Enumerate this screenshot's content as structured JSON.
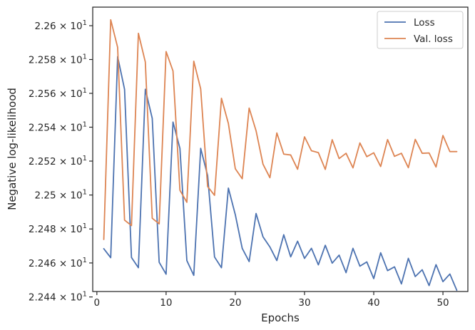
{
  "chart_data": {
    "type": "line",
    "xlabel": "Epochs",
    "ylabel": "Negative log-likelihood",
    "xlim": [
      -0.6,
      53.6
    ],
    "ylim": [
      22.4432,
      22.611
    ],
    "y_scale": "log",
    "grid": false,
    "legend_position": "top-right",
    "x_ticks": [
      0,
      10,
      20,
      30,
      40,
      50
    ],
    "y_ticks": [
      {
        "value": 22.44,
        "mantissa": "2.244",
        "base": "10",
        "exp": "1"
      },
      {
        "value": 22.46,
        "mantissa": "2.246",
        "base": "10",
        "exp": "1"
      },
      {
        "value": 22.48,
        "mantissa": "2.248",
        "base": "10",
        "exp": "1"
      },
      {
        "value": 22.5,
        "mantissa": "2.25",
        "base": "10",
        "exp": "1"
      },
      {
        "value": 22.52,
        "mantissa": "2.252",
        "base": "10",
        "exp": "1"
      },
      {
        "value": 22.54,
        "mantissa": "2.254",
        "base": "10",
        "exp": "1"
      },
      {
        "value": 22.56,
        "mantissa": "2.256",
        "base": "10",
        "exp": "1"
      },
      {
        "value": 22.58,
        "mantissa": "2.258",
        "base": "10",
        "exp": "1"
      },
      {
        "value": 22.6,
        "mantissa": "2.26",
        "base": "10",
        "exp": "1"
      }
    ],
    "x": [
      1,
      2,
      3,
      4,
      5,
      6,
      7,
      8,
      9,
      10,
      11,
      12,
      13,
      14,
      15,
      16,
      17,
      18,
      19,
      20,
      21,
      22,
      23,
      24,
      25,
      26,
      27,
      28,
      29,
      30,
      31,
      32,
      33,
      34,
      35,
      36,
      37,
      38,
      39,
      40,
      41,
      42,
      43,
      44,
      45,
      46,
      47,
      48,
      49,
      50,
      51,
      52
    ],
    "series": [
      {
        "name": "Loss",
        "color": "#4c72b0",
        "values": [
          22.4684,
          22.4631,
          22.5817,
          22.5624,
          22.4632,
          22.4572,
          22.5624,
          22.5452,
          22.4604,
          22.4534,
          22.543,
          22.5275,
          22.4614,
          22.4527,
          22.5275,
          22.5115,
          22.4635,
          22.4572,
          22.5041,
          22.4884,
          22.4686,
          22.4608,
          22.4891,
          22.4754,
          22.4694,
          22.4614,
          22.4766,
          22.4636,
          22.4728,
          22.4627,
          22.4686,
          22.4589,
          22.4704,
          22.4599,
          22.4646,
          22.4543,
          22.4686,
          22.4581,
          22.4606,
          22.4508,
          22.466,
          22.4555,
          22.4577,
          22.4477,
          22.4627,
          22.452,
          22.456,
          22.4467,
          22.459,
          22.449,
          22.4535,
          22.4439
        ]
      },
      {
        "name": "Val. loss",
        "color": "#dd8452",
        "values": [
          22.4738,
          22.6035,
          22.5872,
          22.4852,
          22.482,
          22.5955,
          22.5785,
          22.4863,
          22.483,
          22.5847,
          22.5732,
          22.5028,
          22.4957,
          22.579,
          22.5626,
          22.505,
          22.4998,
          22.5571,
          22.5422,
          22.5155,
          22.5096,
          22.5513,
          22.5379,
          22.5182,
          22.5102,
          22.5366,
          22.5241,
          22.5236,
          22.5152,
          22.5343,
          22.5261,
          22.525,
          22.5151,
          22.5326,
          22.5215,
          22.5246,
          22.516,
          22.5307,
          22.5226,
          22.5249,
          22.5168,
          22.5327,
          22.5228,
          22.5246,
          22.5161,
          22.5328,
          22.5246,
          22.5248,
          22.5165,
          22.5351,
          22.5256,
          22.5256
        ]
      }
    ]
  }
}
